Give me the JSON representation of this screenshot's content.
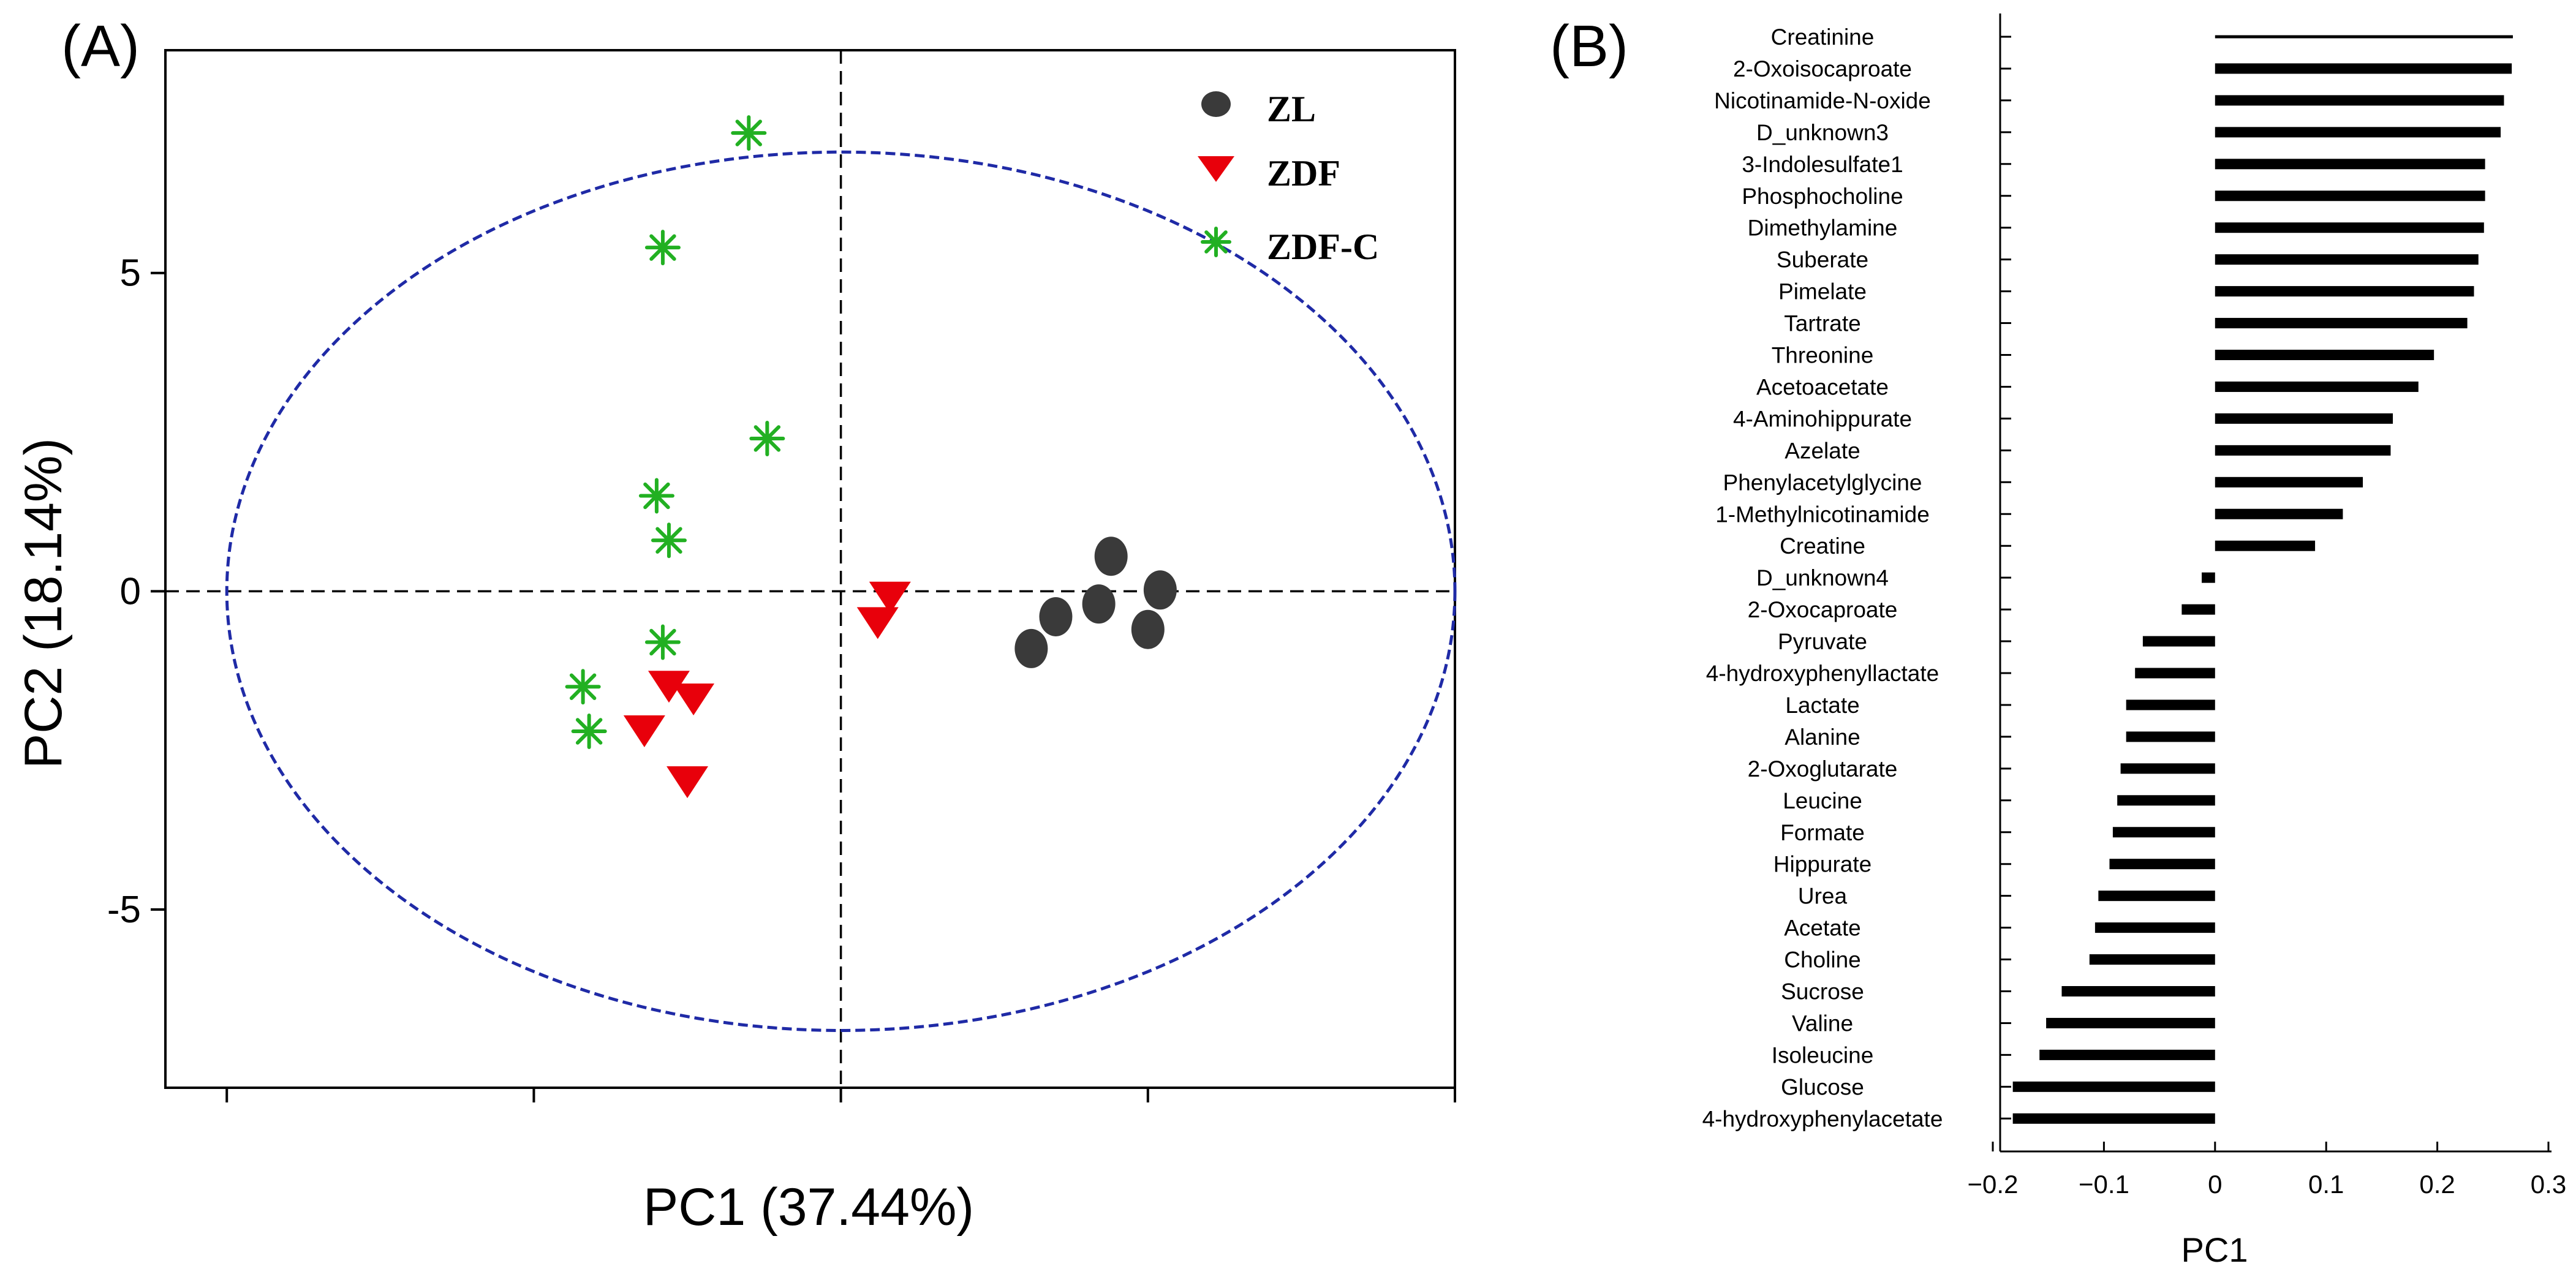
{
  "colors": {
    "ZL": "#3a3a3a",
    "ZDF": "#e8000b",
    "ZDF_C": "#22b022",
    "ellipse": "#1f2aa6",
    "bars": "#000000"
  },
  "chart_data": [
    {
      "type": "scatter",
      "panel_label": "(A)",
      "xlabel": "PC1 (37.44%)",
      "ylabel": "PC2 (18.14%)",
      "xlim": [
        -11,
        10
      ],
      "ylim": [
        -7.8,
        8.5
      ],
      "yticks": [
        5,
        0,
        -5
      ],
      "ytick_labels": [
        "5",
        "0",
        "-5"
      ],
      "xticks": [
        -10,
        -5,
        0,
        5,
        10
      ],
      "reference_lines": {
        "x": 0,
        "y": 0
      },
      "confidence_ellipse": {
        "cx": 0,
        "cy": 0,
        "rx": 10,
        "ry": 6.9
      },
      "legend": [
        {
          "name": "ZL",
          "marker": "circle"
        },
        {
          "name": "ZDF",
          "marker": "triangle-down"
        },
        {
          "name": "ZDF-C",
          "marker": "asterisk"
        }
      ],
      "series": [
        {
          "name": "ZL",
          "points": [
            [
              4.4,
              0.55
            ],
            [
              5.2,
              0.02
            ],
            [
              3.5,
              -0.4
            ],
            [
              4.2,
              -0.2
            ],
            [
              5.0,
              -0.6
            ],
            [
              3.1,
              -0.9
            ]
          ]
        },
        {
          "name": "ZDF",
          "points": [
            [
              0.8,
              -0.1
            ],
            [
              0.6,
              -0.5
            ],
            [
              -2.4,
              -1.7
            ],
            [
              -2.8,
              -1.5
            ],
            [
              -3.2,
              -2.2
            ],
            [
              -2.5,
              -3.0
            ]
          ]
        },
        {
          "name": "ZDF-C",
          "points": [
            [
              -1.5,
              7.2
            ],
            [
              -2.9,
              5.4
            ],
            [
              -1.2,
              2.4
            ],
            [
              -3.0,
              1.5
            ],
            [
              -2.8,
              0.8
            ],
            [
              -2.9,
              -0.8
            ],
            [
              -4.2,
              -1.5
            ],
            [
              -4.1,
              -2.2
            ]
          ]
        }
      ]
    },
    {
      "type": "bar",
      "orientation": "horizontal",
      "panel_label": "(B)",
      "xlabel": "PC1",
      "xlim": [
        -0.2,
        0.3
      ],
      "xticks": [
        -0.2,
        -0.1,
        0,
        0.1,
        0.2,
        0.3
      ],
      "xtick_labels": [
        "−0.2",
        "−0.1",
        "0",
        "0.1",
        "0.2",
        "0.3"
      ],
      "categories": [
        "Creatinine",
        "2-Oxoisocaproate",
        "Nicotinamide-N-oxide",
        "D_unknown3",
        "3-Indolesulfate1",
        "Phosphocholine",
        "Dimethylamine",
        "Suberate",
        "Pimelate",
        "Tartrate",
        "Threonine",
        "Acetoacetate",
        "4-Aminohippurate",
        "Azelate",
        "Phenylacetylglycine",
        "1-Methylnicotinamide",
        "Creatine",
        "D_unknown4",
        "2-Oxocaproate",
        "Pyruvate",
        "4-hydroxyphenyllactate",
        "Lactate",
        "Alanine",
        "2-Oxoglutarate",
        "Leucine",
        "Formate",
        "Hippurate",
        "Urea",
        "Acetate",
        "Choline",
        "Sucrose",
        "Valine",
        "Isoleucine",
        "Glucose",
        "4-hydroxyphenylacetate"
      ],
      "values": [
        0.268,
        0.267,
        0.26,
        0.257,
        0.243,
        0.243,
        0.242,
        0.237,
        0.233,
        0.227,
        0.197,
        0.183,
        0.16,
        0.158,
        0.133,
        0.115,
        0.09,
        -0.012,
        -0.03,
        -0.065,
        -0.072,
        -0.08,
        -0.08,
        -0.085,
        -0.088,
        -0.092,
        -0.095,
        -0.105,
        -0.108,
        -0.113,
        -0.138,
        -0.152,
        -0.158,
        -0.182,
        -0.182
      ]
    }
  ]
}
